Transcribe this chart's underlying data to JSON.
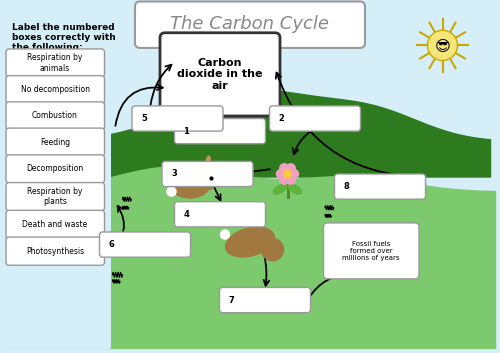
{
  "title": "The Carbon Cycle",
  "bg_color": "#d6eef8",
  "border_color": "#aaaaaa",
  "label_instruction": "Label the numbered\nboxes correctly with\nthe following:",
  "answer_labels": [
    "Respiration by\nanimals",
    "No decomposition",
    "Combustion",
    "Feeding",
    "Decomposition",
    "Respiration by\nplants",
    "Death and waste",
    "Photosynthesis"
  ],
  "center_box_text": "Carbon\ndioxide in the\nair",
  "fossil_fuel_text": "Fossil fuels\nformed over\nmillions of years",
  "grass_color_dark": "#2d7a1f",
  "ground_color": "#7cc96e",
  "sun_color": "#f5e67a",
  "flower_color": "#f0a0c0",
  "rabbit_color": "#a07840",
  "mole_color": "#a07840"
}
